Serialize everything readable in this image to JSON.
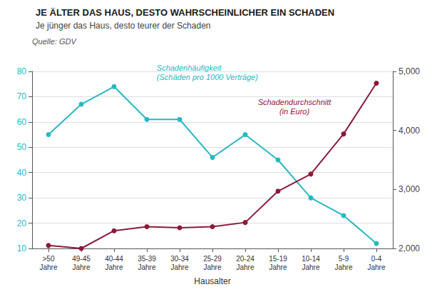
{
  "chart_data": {
    "type": "line",
    "title": "JE ÄLTER DAS HAUS, DESTO WAHRSCHEINLICHER EIN SCHADEN",
    "subtitle": "Je jünger das Haus, desto teurer der Schaden",
    "annotations": [
      "Quelle: GDV"
    ],
    "x_label": "Hausalter",
    "categories": [
      ">50\nJahre",
      "49-45\nJahre",
      "40-44\nJahre",
      "35-39\nJahre",
      "30-34\nJahre",
      "25-29\nJahre",
      "20-24\nJahre",
      "15-19\nJahre",
      "10-14\nJahre",
      "5-9\nJahre",
      "0-4\nJahre"
    ],
    "series": [
      {
        "name": "Schadenhäufigkeit\n(Schäden pro 1000 Verträge)",
        "color": "#29B8C2",
        "marker": "circle",
        "values": [
          55,
          67,
          74,
          61,
          61,
          46,
          55,
          45,
          30,
          23,
          12
        ]
      },
      {
        "name": "Schadendurchschnitt\n(in Euro)",
        "color": "#8B1A3A",
        "marker": "circle",
        "axis": "y2",
        "values": [
          2050,
          2000,
          2300,
          2370,
          2350,
          2370,
          2440,
          2970,
          3260,
          3940,
          4800
        ]
      }
    ],
    "ylim": [
      10,
      80
    ],
    "yticks": [
      10,
      20,
      30,
      40,
      50,
      60,
      70,
      80
    ],
    "y2lim": [
      2000,
      5000
    ],
    "y2ticks": [
      2000,
      3000,
      4000,
      5000
    ],
    "grid": true
  }
}
